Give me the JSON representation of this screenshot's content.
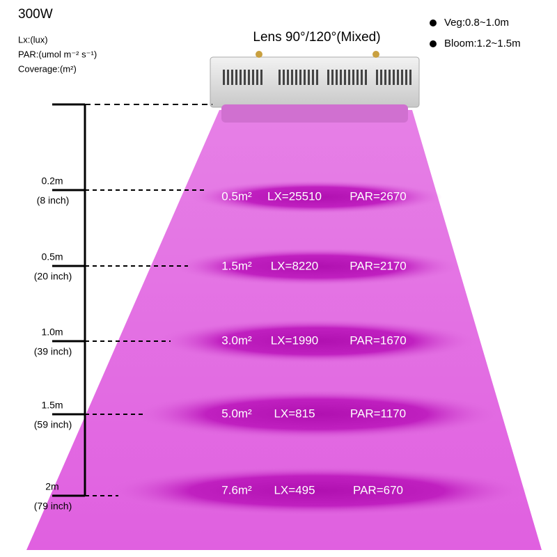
{
  "header": {
    "title": "300W",
    "lines": [
      "Lx:(lux)",
      "PAR:(umol m⁻² s⁻¹)",
      "Coverage:(m²)"
    ]
  },
  "lens": "Lens 90°/120°(Mixed)",
  "key": [
    "Veg:0.8~1.0m",
    "Bloom:1.2~1.5m"
  ],
  "levels": [
    {
      "distance": "0.2m",
      "inch": "(8 inch)",
      "coverage": "0.5m²",
      "lx": "LX=25510",
      "par": "PAR=2670"
    },
    {
      "distance": "0.5m",
      "inch": "(20 inch)",
      "coverage": "1.5m²",
      "lx": "LX=8220",
      "par": "PAR=2170"
    },
    {
      "distance": "1.0m",
      "inch": "(39 inch)",
      "coverage": "3.0m²",
      "lx": "LX=1990",
      "par": "PAR=1670"
    },
    {
      "distance": "1.5m",
      "inch": "(59 inch)",
      "coverage": "5.0m²",
      "lx": "LX=815",
      "par": "PAR=1170"
    },
    {
      "distance": "2m",
      "inch": "(79 inch)",
      "coverage": "7.6m²",
      "lx": "LX=495",
      "par": "PAR=670"
    }
  ]
}
